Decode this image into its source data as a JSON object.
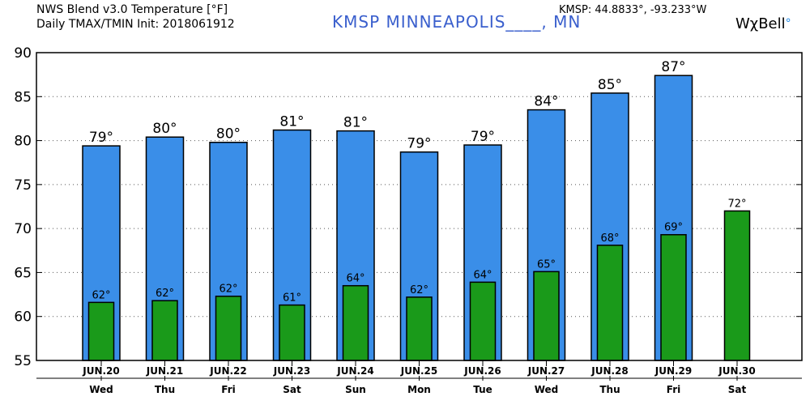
{
  "header": {
    "title_line1": "NWS Blend v3.0 Temperature [°F]",
    "title_line2": "Daily TMAX/TMIN Init: 2018061912",
    "station": "KMSP MINNEAPOLIS____, MN",
    "coords": "KMSP: 44.8833°, -93.233°W",
    "brand": "WχBell",
    "brand_mark": "°"
  },
  "colors": {
    "tmax": "#3a8ee8",
    "tmin": "#1a9a1a",
    "grid": "#555555"
  },
  "chart_data": {
    "type": "bar",
    "title": "NWS Blend v3.0 Temperature [°F]",
    "subtitle": "Daily TMAX/TMIN Init: 2018061912",
    "categories": [
      "JUN.20",
      "JUN.21",
      "JUN.22",
      "JUN.23",
      "JUN.24",
      "JUN.25",
      "JUN.26",
      "JUN.27",
      "JUN.28",
      "JUN.29",
      "JUN.30"
    ],
    "days": [
      "Wed",
      "Thu",
      "Fri",
      "Sat",
      "Sun",
      "Mon",
      "Tue",
      "Wed",
      "Thu",
      "Fri",
      "Sat"
    ],
    "series": [
      {
        "name": "TMAX",
        "values": [
          79.4,
          80.4,
          79.8,
          81.2,
          81.1,
          78.7,
          79.5,
          83.5,
          85.4,
          87.4,
          null
        ],
        "labels": [
          "79°",
          "80°",
          "80°",
          "81°",
          "81°",
          "79°",
          "79°",
          "84°",
          "85°",
          "87°",
          ""
        ]
      },
      {
        "name": "TMIN",
        "values": [
          61.6,
          61.8,
          62.3,
          61.3,
          63.5,
          62.2,
          63.9,
          65.1,
          68.1,
          69.3,
          72.0
        ],
        "labels": [
          "62°",
          "62°",
          "62°",
          "61°",
          "64°",
          "62°",
          "64°",
          "65°",
          "68°",
          "69°",
          "72°"
        ]
      }
    ],
    "yticks": [
      55,
      60,
      65,
      70,
      75,
      80,
      85,
      90
    ],
    "ylim": [
      55,
      90
    ],
    "grid": true
  }
}
